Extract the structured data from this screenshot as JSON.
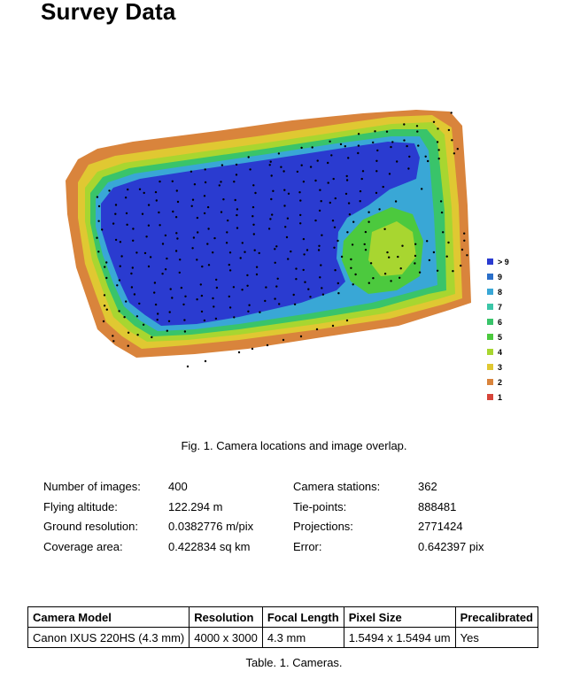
{
  "page_title": "Survey Data",
  "figure": {
    "caption": "Fig. 1. Camera locations and image overlap.",
    "legend": [
      {
        "label": "> 9",
        "color": "#2a3bd0"
      },
      {
        "label": "9",
        "color": "#2b6fc9"
      },
      {
        "label": "8",
        "color": "#39a7d6"
      },
      {
        "label": "7",
        "color": "#3cc6a8"
      },
      {
        "label": "6",
        "color": "#39c46a"
      },
      {
        "label": "5",
        "color": "#4cc93e"
      },
      {
        "label": "4",
        "color": "#a8d630"
      },
      {
        "label": "3",
        "color": "#e0c832"
      },
      {
        "label": "2",
        "color": "#d9843c"
      },
      {
        "label": "1",
        "color": "#d6453a"
      }
    ]
  },
  "stats": {
    "rows": [
      {
        "label1": "Number of images:",
        "value1": "400",
        "label2": "Camera stations:",
        "value2": "362"
      },
      {
        "label1": "Flying altitude:",
        "value1": "122.294 m",
        "label2": "Tie-points:",
        "value2": "888481"
      },
      {
        "label1": "Ground resolution:",
        "value1": "0.0382776 m/pix",
        "label2": "Projections:",
        "value2": "2771424"
      },
      {
        "label1": "Coverage area:",
        "value1": "0.422834 sq km",
        "label2": "Error:",
        "value2": "0.642397 pix"
      }
    ]
  },
  "cameras_table": {
    "headers": [
      "Camera Model",
      "Resolution",
      "Focal Length",
      "Pixel Size",
      "Precalibrated"
    ],
    "rows": [
      [
        "Canon IXUS 220HS (4.3 mm)",
        "4000 x 3000",
        "4.3 mm",
        "1.5494 x 1.5494 um",
        "Yes"
      ]
    ],
    "caption": "Table. 1. Cameras."
  }
}
